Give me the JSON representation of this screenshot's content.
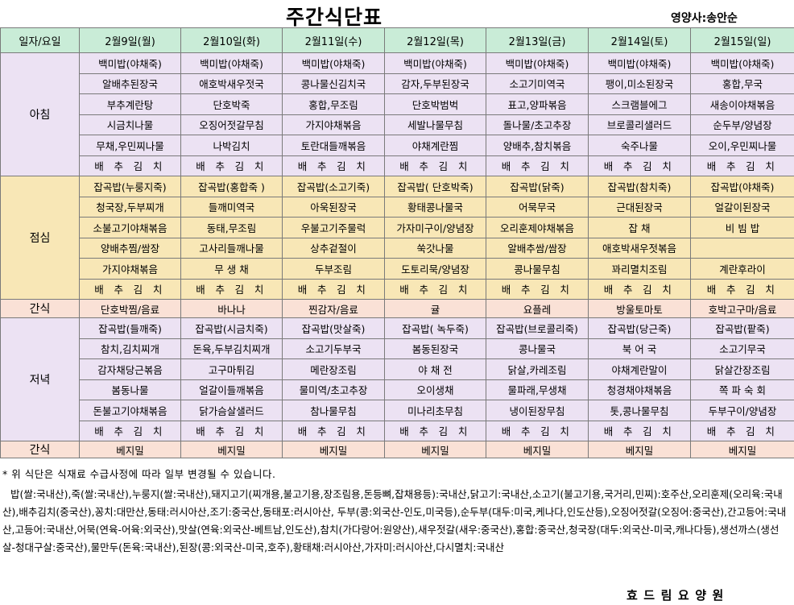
{
  "title": "주간식단표",
  "dietitian": "영양사:송안순",
  "header": [
    "일자/요일",
    "2월9일(월)",
    "2월10일(화)",
    "2월11일(수)",
    "2월12일(목)",
    "2월13일(금)",
    "2월14일(토)",
    "2월15일(일)"
  ],
  "meals": {
    "breakfast": {
      "label": "아침",
      "rows": [
        [
          "백미밥(야채죽)",
          "백미밥(야채죽)",
          "백미밥(야채죽)",
          "백미밥(야채죽)",
          "백미밥(야채죽)",
          "백미밥(야채죽)",
          "백미밥(야채죽)"
        ],
        [
          "알배추된장국",
          "애호박새우젓국",
          "콩나물신김치국",
          "감자,두부된장국",
          "소고기미역국",
          "팽이,미소된장국",
          "홍합,무국"
        ],
        [
          "부추계란탕",
          "단호박죽",
          "홍합,무조림",
          "단호박범벅",
          "표고,양파볶음",
          "스크램블에그",
          "새송이야채볶음"
        ],
        [
          "시금치나물",
          "오징어젓갈무침",
          "가지야채볶음",
          "세발나물무침",
          "돌나물/초고추장",
          "브로콜리샐러드",
          "순두부/양념장"
        ],
        [
          "무채,우민찌나물",
          "나박김치",
          "토란대들깨볶음",
          "야채계란찜",
          "양배추,참치볶음",
          "숙주나물",
          "오이,우민찌나물"
        ],
        [
          "배 추 김 치",
          "배 추 김 치",
          "배 추 김 치",
          "배 추 김 치",
          "배 추 김 치",
          "배 추 김 치",
          "배 추 김 치"
        ]
      ]
    },
    "lunch": {
      "label": "점심",
      "rows": [
        [
          "잡곡밥(누룽지죽)",
          "잡곡밥(홍합죽 )",
          "잡곡밥(소고기죽)",
          "잡곡밥( 단호박죽)",
          "잡곡밥(닭죽)",
          "잡곡밥(참치죽)",
          "잡곡밥(야채죽)"
        ],
        [
          "청국장,두부찌개",
          "들깨미역국",
          "아욱된장국",
          "황태콩나물국",
          "어묵무국",
          "근대된장국",
          "얼갈이된장국"
        ],
        [
          "소불고기야채볶음",
          "동태,무조림",
          "우불고기주물럭",
          "가자미구이/양념장",
          "오리훈제야채볶음",
          "잡 채",
          "비 빔 밥"
        ],
        [
          "양배추찜/쌈장",
          "고사리들깨나물",
          "상추겉절이",
          "쑥갓나물",
          "알배추쌈/쌈장",
          "애호박새우젓볶음",
          ""
        ],
        [
          "가지야채볶음",
          "무 생 채",
          "두부조림",
          "도토리묵/양념장",
          "콩나물무침",
          "꽈리멸치조림",
          "계란후라이"
        ],
        [
          "배 추 김 치",
          "배 추 김 치",
          "배 추 김 치",
          "배 추 김 치",
          "배 추 김 치",
          "배 추 김 치",
          "배 추 김 치"
        ]
      ]
    },
    "snack1": {
      "label": "간식",
      "items": [
        "단호박찜/음료",
        "바나나",
        "찐감자/음료",
        "귤",
        "요플레",
        "방울토마토",
        "호박고구마/음료"
      ]
    },
    "dinner": {
      "label": "저녁",
      "rows": [
        [
          "잡곡밥(들깨죽)",
          "잡곡밥(시금치죽)",
          "잡곡밥(맛살죽)",
          "잡곡밥( 녹두죽)",
          "잡곡밥(브로콜리죽)",
          "잡곡밥(당근죽)",
          "잡곡밥(팥죽)"
        ],
        [
          "참치,김치찌개",
          "돈육,두부김치찌개",
          "소고기두부국",
          "봄동된장국",
          "콩나물국",
          "북 어 국",
          "소고기무국"
        ],
        [
          "감자채당근볶음",
          "고구마튀김",
          "메란장조림",
          "야 채 전",
          "닭살,카레조림",
          "야채계란말이",
          "닭살간장조림"
        ],
        [
          "봄동나물",
          "얼갈이들깨볶음",
          "물미역/초고추장",
          "오이생채",
          "물파래,무생채",
          "청경채야채볶음",
          "쪽 파 숙 회"
        ],
        [
          "돈불고기야채볶음",
          "닭가슴살샐러드",
          "참나물무침",
          "미나리초무침",
          "냉이된장무침",
          "톳,콩나물무침",
          "두부구이/양념장"
        ],
        [
          "배 추 김 치",
          "배 추 김 치",
          "배 추 김 치",
          "배 추 김 치",
          "배 추 김 치",
          "배 추 김 치",
          "배 추 김 치"
        ]
      ]
    },
    "snack2": {
      "label": "간식",
      "items": [
        "베지밀",
        "베지밀",
        "베지밀",
        "베지밀",
        "베지밀",
        "베지밀",
        "베지밀"
      ]
    }
  },
  "note": "* 위 식단은 식재료 수급사정에 따라 일부 변경될 수 있습니다.",
  "origin": "밥(쌀:국내산),죽(쌀:국내산),누룽지(쌀:국내산),돼지고기(찌개용,불고기용,장조림용,돈등뼈,잡채용등):국내산,닭고기:국내산,소고기(불고기용,국거리,민찌):호주산,오리훈제(오리육:국내산),배추김치(중국산),꽁치:대만산,동태:러시아산,조기:중국산,동태포:러시아산, 두부(콩:외국산-인도,미국등),순두부(대두:미국,케나다,인도산등),오징어젓갈(오징어:중국산),간고등어:국내산,고등어:국내산,어묵(연육-어육:외국산),맛살(연육:외국산-베트남,인도산),참치(가다랑어:원양산),새우젓갈(새우:중국산),홍합:중국산,청국장(대두:외국산-미국,캐나다등),생선까스(생선살-청대구살:중국산),물만두(돈육:국내산),된장(콩:외국산-미국,호주),황태채:러시아산,가자미:러시아산,다시멸치:국내산",
  "facility": "효드림요양원",
  "colors": {
    "header": "#c9ecd7",
    "breakfast": "#ece2f3",
    "lunch": "#f8e7b6",
    "snack": "#fae1d6",
    "dinner": "#ece2f3",
    "border": "#7a7a7a"
  }
}
